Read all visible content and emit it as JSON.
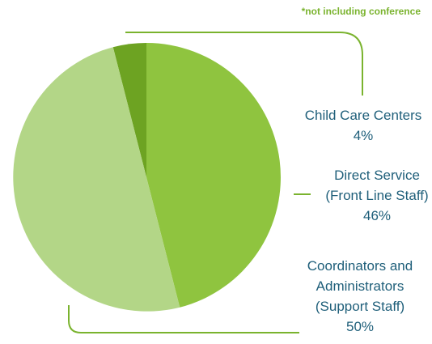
{
  "footnote": "*not including conference",
  "colors": {
    "slice_child_care": "#6da322",
    "slice_direct_service": "#8fc43f",
    "slice_coordinators": "#b3d687",
    "leader_lines": "#7ab32e",
    "label_text": "#1f5f7a"
  },
  "chart_data": {
    "type": "pie",
    "title": "",
    "slices": [
      {
        "label_lines": [
          "Child Care Centers"
        ],
        "value": 4,
        "value_label": "4%"
      },
      {
        "label_lines": [
          "Direct Service",
          "(Front Line Staff)"
        ],
        "value": 46,
        "value_label": "46%"
      },
      {
        "label_lines": [
          "Coordinators and",
          "Administrators",
          "(Support Staff)"
        ],
        "value": 50,
        "value_label": "50%"
      }
    ]
  }
}
